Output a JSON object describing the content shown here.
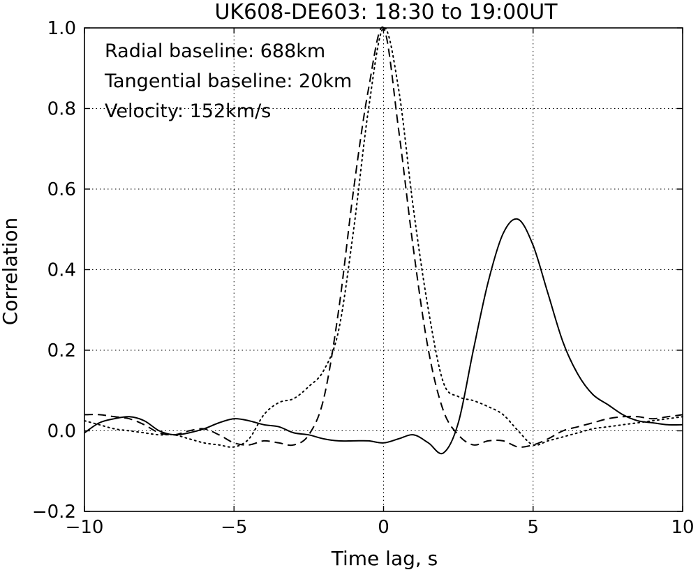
{
  "chart_data": {
    "type": "line",
    "title": "UK608-DE603: 18:30 to 19:00UT",
    "xlabel": "Time lag, s",
    "ylabel": "Correlation",
    "xlim": [
      -10,
      10
    ],
    "ylim": [
      -0.2,
      1.0
    ],
    "xticks": [
      -10,
      -5,
      0,
      5,
      10
    ],
    "xtick_labels": [
      "−10",
      "−5",
      "0",
      "5",
      "10"
    ],
    "yticks": [
      -0.2,
      0.0,
      0.2,
      0.4,
      0.6,
      0.8,
      1.0
    ],
    "ytick_labels": [
      "−0.2",
      "0.0",
      "0.2",
      "0.4",
      "0.6",
      "0.8",
      "1.0"
    ],
    "grid": true,
    "annotations": [
      "Radial baseline: 688km",
      "Tangential baseline: 20km",
      "Velocity: 152km/s"
    ],
    "series": [
      {
        "style": "solid",
        "color": "#000000",
        "x": [
          -10,
          -9.5,
          -9,
          -8.5,
          -8,
          -7.5,
          -7,
          -6.5,
          -6,
          -5.5,
          -5,
          -4.5,
          -4,
          -3.5,
          -3,
          -2.5,
          -2,
          -1.5,
          -1,
          -0.5,
          0,
          0.5,
          1,
          1.5,
          2,
          2.5,
          3,
          3.5,
          4,
          4.5,
          5,
          5.5,
          6,
          6.5,
          7,
          7.5,
          8,
          8.5,
          9,
          9.5,
          10
        ],
        "y": [
          -0.005,
          0.02,
          0.03,
          0.035,
          0.025,
          0.0,
          -0.01,
          -0.005,
          0.005,
          0.02,
          0.03,
          0.025,
          0.015,
          0.01,
          -0.005,
          -0.01,
          -0.02,
          -0.025,
          -0.025,
          -0.025,
          -0.03,
          -0.02,
          -0.01,
          -0.03,
          -0.055,
          0.02,
          0.2,
          0.37,
          0.49,
          0.525,
          0.46,
          0.34,
          0.22,
          0.14,
          0.09,
          0.065,
          0.04,
          0.025,
          0.02,
          0.015,
          0.015
        ]
      },
      {
        "style": "dashed",
        "color": "#000000",
        "x": [
          -10,
          -9.5,
          -9,
          -8.5,
          -8,
          -7.5,
          -7,
          -6.5,
          -6,
          -5.5,
          -5,
          -4.5,
          -4,
          -3.5,
          -3,
          -2.5,
          -2,
          -1.5,
          -1,
          -0.5,
          0,
          0.5,
          1,
          1.5,
          2,
          2.5,
          3,
          3.5,
          4,
          4.5,
          5,
          5.5,
          6,
          6.5,
          7,
          7.5,
          8,
          8.5,
          9,
          9.5,
          10
        ],
        "y": [
          0.04,
          0.04,
          0.035,
          0.03,
          0.015,
          -0.005,
          -0.01,
          0.0,
          0.005,
          -0.01,
          -0.03,
          -0.035,
          -0.025,
          -0.03,
          -0.035,
          -0.01,
          0.08,
          0.3,
          0.6,
          0.85,
          1.0,
          0.75,
          0.45,
          0.2,
          0.05,
          -0.01,
          -0.035,
          -0.025,
          -0.025,
          -0.04,
          -0.035,
          -0.02,
          0.0,
          0.01,
          0.02,
          0.03,
          0.035,
          0.035,
          0.03,
          0.035,
          0.04
        ]
      },
      {
        "style": "dotted",
        "color": "#000000",
        "x": [
          -10,
          -9.5,
          -9,
          -8.5,
          -8,
          -7.5,
          -7,
          -6.5,
          -6,
          -5.5,
          -5,
          -4.5,
          -4,
          -3.5,
          -3,
          -2.5,
          -2,
          -1.5,
          -1,
          -0.5,
          0,
          0.5,
          1,
          1.5,
          2,
          2.5,
          3,
          3.5,
          4,
          4.5,
          5,
          5.5,
          6,
          6.5,
          7,
          7.5,
          8,
          8.5,
          9,
          9.5,
          10
        ],
        "y": [
          0.025,
          0.015,
          0.005,
          0.0,
          -0.005,
          -0.01,
          -0.01,
          -0.02,
          -0.03,
          -0.035,
          -0.04,
          -0.02,
          0.04,
          0.07,
          0.08,
          0.11,
          0.15,
          0.25,
          0.5,
          0.8,
          1.0,
          0.85,
          0.55,
          0.3,
          0.12,
          0.085,
          0.075,
          0.06,
          0.04,
          0.0,
          -0.035,
          -0.025,
          -0.015,
          -0.005,
          0.005,
          0.01,
          0.015,
          0.02,
          0.025,
          0.03,
          0.035
        ]
      }
    ]
  }
}
